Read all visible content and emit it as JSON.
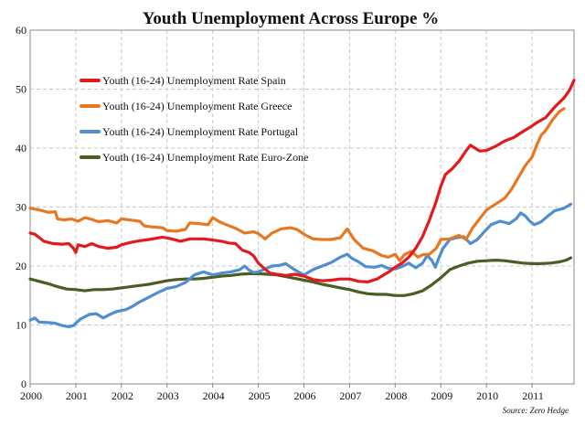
{
  "chart_data": {
    "type": "line",
    "title": "Youth Unemployment Across Europe %",
    "source": "Source: Zero Hedge",
    "xlabel": "",
    "ylabel": "",
    "xlim": [
      2000,
      2011.92
    ],
    "ylim": [
      0,
      60
    ],
    "x_ticks": [
      {
        "label": "2000",
        "value": 2000
      },
      {
        "label": "2001",
        "value": 2001
      },
      {
        "label": "2002",
        "value": 2002
      },
      {
        "label": "2003",
        "value": 2003
      },
      {
        "label": "2004",
        "value": 2004
      },
      {
        "label": "2005",
        "value": 2005
      },
      {
        "label": "2006",
        "value": 2006
      },
      {
        "label": "2007",
        "value": 2007
      },
      {
        "label": "2008",
        "value": 2008
      },
      {
        "label": "2009",
        "value": 2009
      },
      {
        "label": "2010",
        "value": 2010
      },
      {
        "label": "2011",
        "value": 2011
      }
    ],
    "y_ticks": [
      0,
      10,
      20,
      30,
      40,
      50,
      60
    ],
    "grid": true,
    "legend_position": "top-left",
    "series": [
      {
        "name": "Youth (16-24) Unemployment Rate Spain",
        "color": "#e31a1c",
        "points": [
          [
            2000.0,
            25.6
          ],
          [
            2000.1,
            25.4
          ],
          [
            2000.2,
            24.8
          ],
          [
            2000.3,
            24.2
          ],
          [
            2000.5,
            23.8
          ],
          [
            2000.7,
            23.7
          ],
          [
            2000.85,
            23.8
          ],
          [
            2000.95,
            23.0
          ],
          [
            2001.0,
            22.3
          ],
          [
            2001.05,
            23.6
          ],
          [
            2001.2,
            23.3
          ],
          [
            2001.35,
            23.8
          ],
          [
            2001.5,
            23.3
          ],
          [
            2001.7,
            23.0
          ],
          [
            2001.9,
            23.2
          ],
          [
            2002.0,
            23.6
          ],
          [
            2002.2,
            24.0
          ],
          [
            2002.4,
            24.3
          ],
          [
            2002.6,
            24.5
          ],
          [
            2002.9,
            24.9
          ],
          [
            2003.1,
            24.6
          ],
          [
            2003.3,
            24.2
          ],
          [
            2003.5,
            24.6
          ],
          [
            2003.8,
            24.6
          ],
          [
            2004.0,
            24.4
          ],
          [
            2004.2,
            24.2
          ],
          [
            2004.35,
            23.9
          ],
          [
            2004.5,
            23.8
          ],
          [
            2004.65,
            22.7
          ],
          [
            2004.8,
            22.3
          ],
          [
            2004.9,
            21.7
          ],
          [
            2005.0,
            20.5
          ],
          [
            2005.1,
            19.8
          ],
          [
            2005.25,
            18.8
          ],
          [
            2005.4,
            18.6
          ],
          [
            2005.6,
            18.4
          ],
          [
            2005.8,
            18.6
          ],
          [
            2006.0,
            18.3
          ],
          [
            2006.2,
            17.7
          ],
          [
            2006.4,
            17.5
          ],
          [
            2006.6,
            17.6
          ],
          [
            2006.8,
            17.8
          ],
          [
            2007.0,
            17.8
          ],
          [
            2007.2,
            17.4
          ],
          [
            2007.4,
            17.3
          ],
          [
            2007.6,
            17.8
          ],
          [
            2007.75,
            18.5
          ],
          [
            2007.9,
            19.2
          ],
          [
            2008.0,
            19.8
          ],
          [
            2008.15,
            20.5
          ],
          [
            2008.3,
            21.5
          ],
          [
            2008.45,
            23.0
          ],
          [
            2008.6,
            25.0
          ],
          [
            2008.75,
            27.8
          ],
          [
            2008.9,
            31.0
          ],
          [
            2009.0,
            33.5
          ],
          [
            2009.1,
            35.5
          ],
          [
            2009.25,
            36.5
          ],
          [
            2009.4,
            37.8
          ],
          [
            2009.55,
            39.5
          ],
          [
            2009.65,
            40.5
          ],
          [
            2009.75,
            40.0
          ],
          [
            2009.85,
            39.5
          ],
          [
            2010.0,
            39.6
          ],
          [
            2010.2,
            40.3
          ],
          [
            2010.4,
            41.2
          ],
          [
            2010.6,
            41.8
          ],
          [
            2010.8,
            42.8
          ],
          [
            2010.95,
            43.5
          ],
          [
            2011.1,
            44.3
          ],
          [
            2011.3,
            45.2
          ],
          [
            2011.5,
            47.0
          ],
          [
            2011.7,
            48.5
          ],
          [
            2011.82,
            49.8
          ],
          [
            2011.88,
            50.8
          ],
          [
            2011.92,
            51.5
          ]
        ]
      },
      {
        "name": "Youth (16-24) Unemployment Rate Greece",
        "color": "#e87722",
        "points": [
          [
            2000.0,
            29.8
          ],
          [
            2000.2,
            29.5
          ],
          [
            2000.4,
            29.1
          ],
          [
            2000.55,
            29.2
          ],
          [
            2000.6,
            28.0
          ],
          [
            2000.75,
            27.8
          ],
          [
            2000.9,
            28.0
          ],
          [
            2001.05,
            27.6
          ],
          [
            2001.2,
            28.2
          ],
          [
            2001.35,
            27.9
          ],
          [
            2001.5,
            27.5
          ],
          [
            2001.7,
            27.7
          ],
          [
            2001.9,
            27.3
          ],
          [
            2002.0,
            28.0
          ],
          [
            2002.2,
            27.8
          ],
          [
            2002.4,
            27.6
          ],
          [
            2002.5,
            26.8
          ],
          [
            2002.7,
            26.6
          ],
          [
            2002.9,
            26.5
          ],
          [
            2003.0,
            26.0
          ],
          [
            2003.2,
            25.9
          ],
          [
            2003.4,
            26.2
          ],
          [
            2003.5,
            27.3
          ],
          [
            2003.7,
            27.2
          ],
          [
            2003.9,
            27.0
          ],
          [
            2004.0,
            28.2
          ],
          [
            2004.15,
            27.5
          ],
          [
            2004.3,
            27.0
          ],
          [
            2004.5,
            26.4
          ],
          [
            2004.7,
            25.6
          ],
          [
            2004.9,
            25.8
          ],
          [
            2005.0,
            25.5
          ],
          [
            2005.15,
            24.6
          ],
          [
            2005.3,
            25.6
          ],
          [
            2005.5,
            26.3
          ],
          [
            2005.7,
            26.5
          ],
          [
            2005.85,
            26.2
          ],
          [
            2006.0,
            25.4
          ],
          [
            2006.2,
            24.6
          ],
          [
            2006.4,
            24.5
          ],
          [
            2006.6,
            24.5
          ],
          [
            2006.8,
            24.8
          ],
          [
            2006.95,
            26.3
          ],
          [
            2007.1,
            24.5
          ],
          [
            2007.3,
            23.0
          ],
          [
            2007.5,
            22.6
          ],
          [
            2007.7,
            21.8
          ],
          [
            2007.85,
            21.5
          ],
          [
            2008.0,
            22.0
          ],
          [
            2008.1,
            20.9
          ],
          [
            2008.2,
            21.9
          ],
          [
            2008.35,
            22.5
          ],
          [
            2008.5,
            21.5
          ],
          [
            2008.6,
            21.9
          ],
          [
            2008.75,
            22.0
          ],
          [
            2008.9,
            23.0
          ],
          [
            2009.0,
            24.5
          ],
          [
            2009.2,
            24.6
          ],
          [
            2009.4,
            25.2
          ],
          [
            2009.55,
            24.5
          ],
          [
            2009.7,
            26.5
          ],
          [
            2009.85,
            28.0
          ],
          [
            2010.0,
            29.5
          ],
          [
            2010.2,
            30.5
          ],
          [
            2010.4,
            31.5
          ],
          [
            2010.55,
            33.0
          ],
          [
            2010.7,
            35.0
          ],
          [
            2010.85,
            37.0
          ],
          [
            2011.0,
            38.5
          ],
          [
            2011.1,
            40.5
          ],
          [
            2011.2,
            42.2
          ],
          [
            2011.3,
            43.0
          ],
          [
            2011.45,
            44.8
          ],
          [
            2011.6,
            46.2
          ],
          [
            2011.7,
            46.7
          ]
        ]
      },
      {
        "name": "Youth (16-24) Unemployment Rate Portugal",
        "color": "#4f8fd0",
        "points": [
          [
            2000.0,
            10.8
          ],
          [
            2000.1,
            11.2
          ],
          [
            2000.2,
            10.5
          ],
          [
            2000.4,
            10.4
          ],
          [
            2000.55,
            10.3
          ],
          [
            2000.7,
            9.9
          ],
          [
            2000.85,
            9.7
          ],
          [
            2000.95,
            9.9
          ],
          [
            2001.1,
            11.0
          ],
          [
            2001.3,
            11.8
          ],
          [
            2001.45,
            11.9
          ],
          [
            2001.6,
            11.2
          ],
          [
            2001.75,
            11.8
          ],
          [
            2001.9,
            12.3
          ],
          [
            2002.1,
            12.6
          ],
          [
            2002.25,
            13.2
          ],
          [
            2002.4,
            13.9
          ],
          [
            2002.6,
            14.7
          ],
          [
            2002.8,
            15.5
          ],
          [
            2003.0,
            16.2
          ],
          [
            2003.2,
            16.5
          ],
          [
            2003.4,
            17.2
          ],
          [
            2003.6,
            18.5
          ],
          [
            2003.8,
            19.0
          ],
          [
            2004.0,
            18.5
          ],
          [
            2004.2,
            18.8
          ],
          [
            2004.4,
            19.0
          ],
          [
            2004.6,
            19.4
          ],
          [
            2004.7,
            20.0
          ],
          [
            2004.8,
            19.3
          ],
          [
            2004.9,
            18.9
          ],
          [
            2005.0,
            19.0
          ],
          [
            2005.15,
            19.5
          ],
          [
            2005.3,
            20.0
          ],
          [
            2005.45,
            20.1
          ],
          [
            2005.6,
            20.4
          ],
          [
            2005.75,
            19.6
          ],
          [
            2005.9,
            18.9
          ],
          [
            2006.0,
            18.5
          ],
          [
            2006.2,
            19.4
          ],
          [
            2006.4,
            20.0
          ],
          [
            2006.6,
            20.6
          ],
          [
            2006.8,
            21.5
          ],
          [
            2006.95,
            22.0
          ],
          [
            2007.05,
            21.3
          ],
          [
            2007.2,
            20.7
          ],
          [
            2007.35,
            19.9
          ],
          [
            2007.55,
            19.8
          ],
          [
            2007.7,
            20.1
          ],
          [
            2007.85,
            19.6
          ],
          [
            2008.0,
            19.5
          ],
          [
            2008.15,
            19.9
          ],
          [
            2008.3,
            20.5
          ],
          [
            2008.45,
            19.7
          ],
          [
            2008.6,
            20.5
          ],
          [
            2008.7,
            21.8
          ],
          [
            2008.8,
            21.0
          ],
          [
            2008.88,
            19.8
          ],
          [
            2008.95,
            21.2
          ],
          [
            2009.05,
            23.0
          ],
          [
            2009.2,
            24.5
          ],
          [
            2009.35,
            24.8
          ],
          [
            2009.5,
            25.0
          ],
          [
            2009.65,
            23.8
          ],
          [
            2009.8,
            24.5
          ],
          [
            2009.95,
            25.8
          ],
          [
            2010.1,
            27.0
          ],
          [
            2010.3,
            27.6
          ],
          [
            2010.5,
            27.2
          ],
          [
            2010.65,
            28.0
          ],
          [
            2010.75,
            29.0
          ],
          [
            2010.85,
            28.5
          ],
          [
            2010.95,
            27.6
          ],
          [
            2011.05,
            27.0
          ],
          [
            2011.2,
            27.5
          ],
          [
            2011.35,
            28.5
          ],
          [
            2011.5,
            29.4
          ],
          [
            2011.7,
            29.8
          ],
          [
            2011.85,
            30.5
          ]
        ]
      },
      {
        "name": "Youth (16-24) Unemployment Rate Euro-Zone",
        "color": "#4a5e23",
        "points": [
          [
            2000.0,
            17.8
          ],
          [
            2000.2,
            17.4
          ],
          [
            2000.4,
            17.0
          ],
          [
            2000.6,
            16.5
          ],
          [
            2000.8,
            16.1
          ],
          [
            2001.0,
            16.0
          ],
          [
            2001.2,
            15.8
          ],
          [
            2001.4,
            16.0
          ],
          [
            2001.6,
            16.0
          ],
          [
            2001.8,
            16.1
          ],
          [
            2002.0,
            16.3
          ],
          [
            2002.2,
            16.5
          ],
          [
            2002.4,
            16.7
          ],
          [
            2002.6,
            16.9
          ],
          [
            2002.8,
            17.2
          ],
          [
            2003.0,
            17.5
          ],
          [
            2003.2,
            17.7
          ],
          [
            2003.4,
            17.8
          ],
          [
            2003.6,
            17.8
          ],
          [
            2003.8,
            17.9
          ],
          [
            2004.0,
            18.1
          ],
          [
            2004.2,
            18.3
          ],
          [
            2004.4,
            18.4
          ],
          [
            2004.6,
            18.6
          ],
          [
            2004.8,
            18.7
          ],
          [
            2005.0,
            18.7
          ],
          [
            2005.2,
            18.6
          ],
          [
            2005.4,
            18.5
          ],
          [
            2005.6,
            18.2
          ],
          [
            2005.8,
            17.9
          ],
          [
            2006.0,
            17.6
          ],
          [
            2006.2,
            17.3
          ],
          [
            2006.4,
            16.9
          ],
          [
            2006.6,
            16.6
          ],
          [
            2006.8,
            16.3
          ],
          [
            2007.0,
            16.0
          ],
          [
            2007.2,
            15.6
          ],
          [
            2007.4,
            15.3
          ],
          [
            2007.6,
            15.2
          ],
          [
            2007.8,
            15.2
          ],
          [
            2008.0,
            15.0
          ],
          [
            2008.2,
            15.0
          ],
          [
            2008.4,
            15.3
          ],
          [
            2008.6,
            15.8
          ],
          [
            2008.8,
            16.8
          ],
          [
            2009.0,
            18.0
          ],
          [
            2009.2,
            19.4
          ],
          [
            2009.4,
            20.0
          ],
          [
            2009.6,
            20.5
          ],
          [
            2009.8,
            20.8
          ],
          [
            2010.0,
            20.9
          ],
          [
            2010.2,
            21.0
          ],
          [
            2010.4,
            20.9
          ],
          [
            2010.6,
            20.7
          ],
          [
            2010.8,
            20.5
          ],
          [
            2011.0,
            20.4
          ],
          [
            2011.2,
            20.4
          ],
          [
            2011.4,
            20.5
          ],
          [
            2011.6,
            20.7
          ],
          [
            2011.75,
            21.0
          ],
          [
            2011.85,
            21.4
          ]
        ]
      }
    ]
  }
}
